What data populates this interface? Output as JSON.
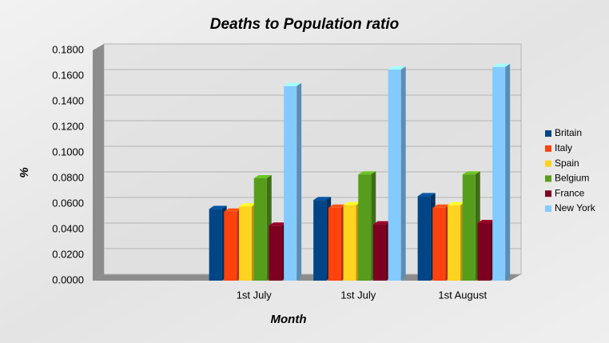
{
  "chart_data": {
    "type": "bar",
    "title": "Deaths to Population ratio",
    "x_label": "Month",
    "y_label": "%",
    "categories": [
      null,
      "1st July",
      "1st July",
      "1st August"
    ],
    "series": [
      {
        "name": "Britain",
        "color": "#004586",
        "values": [
          null,
          0.056,
          0.063,
          0.066
        ]
      },
      {
        "name": "Italy",
        "color": "#ff420e",
        "values": [
          null,
          0.054,
          0.057,
          0.057
        ]
      },
      {
        "name": "Spain",
        "color": "#ffd320",
        "values": [
          null,
          0.058,
          0.059,
          0.059
        ]
      },
      {
        "name": "Belgium",
        "color": "#579d1c",
        "values": [
          null,
          0.08,
          0.083,
          0.083
        ]
      },
      {
        "name": "France",
        "color": "#7e0021",
        "values": [
          null,
          0.043,
          0.044,
          0.045
        ]
      },
      {
        "name": "New York",
        "color": "#83caff",
        "values": [
          null,
          0.152,
          0.165,
          0.167
        ]
      }
    ],
    "ylim": [
      0,
      0.18
    ],
    "yticks": [
      {
        "value": 0,
        "label": "0.0000"
      },
      {
        "value": 0.02,
        "label": "0.0200"
      },
      {
        "value": 0.04,
        "label": "0.0400"
      },
      {
        "value": 0.06,
        "label": "0.0600"
      },
      {
        "value": 0.08,
        "label": "0.0800"
      },
      {
        "value": 0.1,
        "label": "0.1000"
      },
      {
        "value": 0.12,
        "label": "0.1200"
      },
      {
        "value": 0.14,
        "label": "0.1400"
      },
      {
        "value": 0.16,
        "label": "0.1600"
      },
      {
        "value": 0.18,
        "label": "0.1800"
      }
    ],
    "grid": true,
    "legend": "right"
  }
}
